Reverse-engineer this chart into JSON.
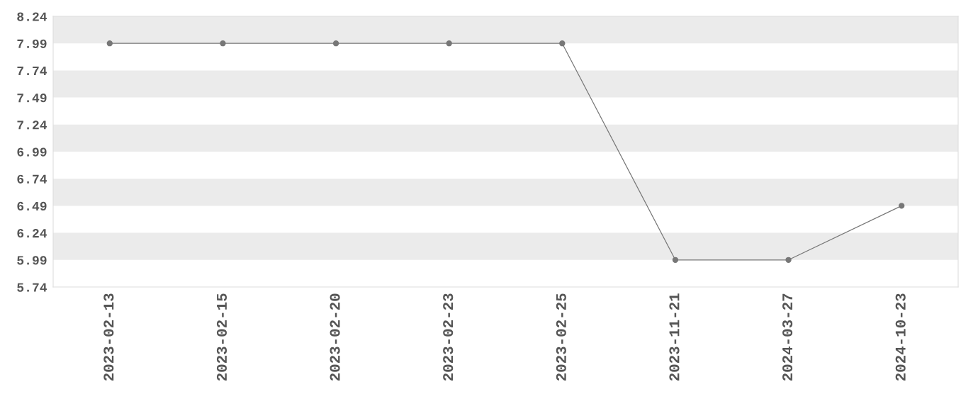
{
  "chart_data": {
    "type": "line",
    "categories": [
      "2023-02-13",
      "2023-02-15",
      "2023-02-20",
      "2023-02-23",
      "2023-02-25",
      "2023-11-21",
      "2024-03-27",
      "2024-10-23"
    ],
    "series": [
      {
        "color": "#777777",
        "values": [
          7.99,
          7.99,
          7.99,
          7.99,
          7.99,
          5.99,
          5.99,
          6.49
        ]
      }
    ],
    "ylim": [
      5.74,
      8.24
    ],
    "yticks": [
      5.74,
      5.99,
      6.24,
      6.49,
      6.74,
      6.99,
      7.24,
      7.49,
      7.74,
      7.99,
      8.24
    ],
    "bands": [
      {
        "axis": "y",
        "from": 5.99,
        "to": 6.24,
        "color": "#ebebeb"
      },
      {
        "axis": "y",
        "from": 6.49,
        "to": 6.74,
        "color": "#ebebeb"
      },
      {
        "axis": "y",
        "from": 6.99,
        "to": 7.24,
        "color": "#ebebeb"
      },
      {
        "axis": "y",
        "from": 7.49,
        "to": 7.74,
        "color": "#ebebeb"
      },
      {
        "axis": "y",
        "from": 7.99,
        "to": 8.24,
        "color": "#ebebeb"
      }
    ],
    "marker": "circle",
    "line_style": "solid",
    "grid": false,
    "legend": false
  }
}
